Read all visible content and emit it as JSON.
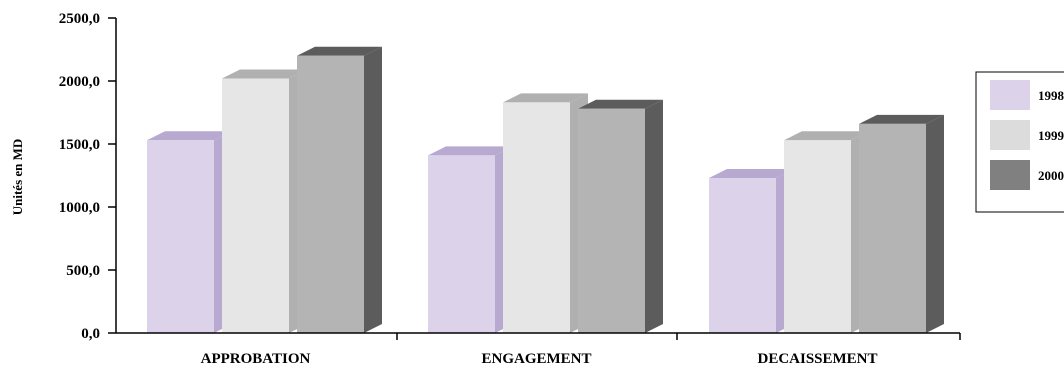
{
  "chart_data": {
    "type": "bar",
    "style": "3d-clustered",
    "ylabel": "Unités en MD",
    "ylim": [
      0,
      2500
    ],
    "yticks": [
      0,
      500,
      1000,
      1500,
      2000,
      2500
    ],
    "ytick_labels": [
      "0,0",
      "500,0",
      "1000,0",
      "1500,0",
      "2000,0",
      "2500,0"
    ],
    "categories": [
      "APPROBATION",
      "ENGAGEMENT",
      "DECAISSEMENT"
    ],
    "series": [
      {
        "name": "1998",
        "values": [
          1530,
          1410,
          1230
        ],
        "color": "#dcd3ea",
        "side_color": "#b8a9d0",
        "legend_color": "#dcd3ea"
      },
      {
        "name": "1999",
        "values": [
          2020,
          1830,
          1530
        ],
        "color": "#e6e6e6",
        "side_color": "#b0b0b0",
        "legend_color": "#dcdcdc"
      },
      {
        "name": "2000",
        "values": [
          2200,
          1780,
          1660
        ],
        "color": "#b4b4b4",
        "side_color": "#5c5c5c",
        "legend_color": "#808080"
      }
    ],
    "grid": false,
    "legend_position": "right"
  }
}
